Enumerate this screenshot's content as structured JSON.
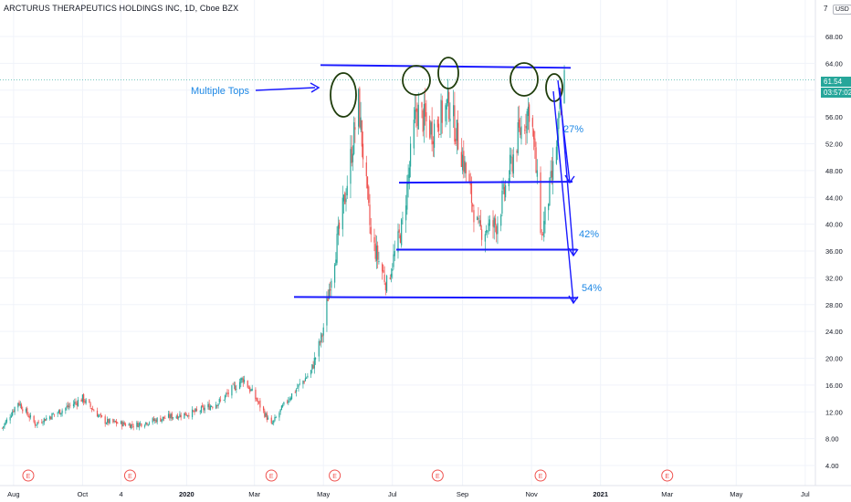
{
  "header": {
    "symbol_title": "ARCTURUS THERAPEUTICS HOLDINGS INC, 1D, Cboe BZX",
    "timezone_label": "7",
    "currency_label": "USD"
  },
  "price_axis": {
    "last_price": "61.54",
    "countdown": "03:57:02",
    "last_price_color": "#26a69a"
  },
  "chart_data": {
    "type": "candlestick",
    "title": "ARCTURUS THERAPEUTICS HOLDINGS INC, 1D, Cboe BZX",
    "y_ticks": [
      "4.00",
      "8.00",
      "12.00",
      "16.00",
      "20.00",
      "24.00",
      "28.00",
      "32.00",
      "36.00",
      "40.00",
      "44.00",
      "48.00",
      "52.00",
      "56.00",
      "60.00",
      "64.00",
      "68.00"
    ],
    "ylim": [
      4,
      68
    ],
    "x_ticks": [
      "Aug",
      "Oct",
      "4",
      "2020",
      "Mar",
      "May",
      "Jul",
      "Sep",
      "Nov",
      "2021",
      "Mar",
      "May",
      "Jul"
    ],
    "x_range": [
      "2019-07-20",
      "2021-07-10"
    ],
    "earnings_markers": [
      {
        "label": "E",
        "date": "2019-08-14"
      },
      {
        "label": "E",
        "date": "2019-11-12"
      },
      {
        "label": "E",
        "date": "2020-03-16"
      },
      {
        "label": "E",
        "date": "2020-05-11"
      },
      {
        "label": "E",
        "date": "2020-08-10"
      },
      {
        "label": "E",
        "date": "2020-11-09"
      },
      {
        "label": "E",
        "date": "2021-03-01"
      }
    ],
    "price_path": [
      {
        "date": "2019-07-22",
        "close": 9.6
      },
      {
        "date": "2019-08-05",
        "close": 13.5
      },
      {
        "date": "2019-08-20",
        "close": 10.2
      },
      {
        "date": "2019-09-10",
        "close": 12.0
      },
      {
        "date": "2019-10-01",
        "close": 14.0
      },
      {
        "date": "2019-10-20",
        "close": 10.6
      },
      {
        "date": "2019-11-15",
        "close": 10.0
      },
      {
        "date": "2019-12-15",
        "close": 11.2
      },
      {
        "date": "2020-01-10",
        "close": 12.0
      },
      {
        "date": "2020-01-31",
        "close": 13.6
      },
      {
        "date": "2020-02-20",
        "close": 17.0
      },
      {
        "date": "2020-03-05",
        "close": 13.2
      },
      {
        "date": "2020-03-16",
        "close": 10.0
      },
      {
        "date": "2020-03-31",
        "close": 14.0
      },
      {
        "date": "2020-04-20",
        "close": 18.0
      },
      {
        "date": "2020-04-30",
        "close": 23.5
      },
      {
        "date": "2020-05-07",
        "close": 31.5
      },
      {
        "date": "2020-05-20",
        "close": 44.0
      },
      {
        "date": "2020-06-01",
        "close": 58.0
      },
      {
        "date": "2020-06-12",
        "close": 38.0
      },
      {
        "date": "2020-06-26",
        "close": 31.0
      },
      {
        "date": "2020-07-10",
        "close": 40.0
      },
      {
        "date": "2020-07-22",
        "close": 57.0
      },
      {
        "date": "2020-08-05",
        "close": 54.0
      },
      {
        "date": "2020-08-20",
        "close": 58.0
      },
      {
        "date": "2020-09-01",
        "close": 50.0
      },
      {
        "date": "2020-09-15",
        "close": 39.0
      },
      {
        "date": "2020-10-01",
        "close": 40.0
      },
      {
        "date": "2020-10-20",
        "close": 53.0
      },
      {
        "date": "2020-10-31",
        "close": 58.0
      },
      {
        "date": "2020-11-10",
        "close": 38.0
      },
      {
        "date": "2020-11-20",
        "close": 48.0
      },
      {
        "date": "2020-11-30",
        "close": 61.5
      }
    ],
    "last_price": 61.54,
    "annotations": {
      "callout": "Multiple Tops",
      "percent_labels": [
        "27%",
        "42%",
        "54%"
      ],
      "resistance_level": 63.6,
      "support_levels": [
        46.2,
        36.2,
        29.0
      ],
      "circled_tops": [
        "2020-05-25",
        "2020-07-15",
        "2020-08-20",
        "2020-11-05",
        "2020-11-24"
      ]
    }
  }
}
